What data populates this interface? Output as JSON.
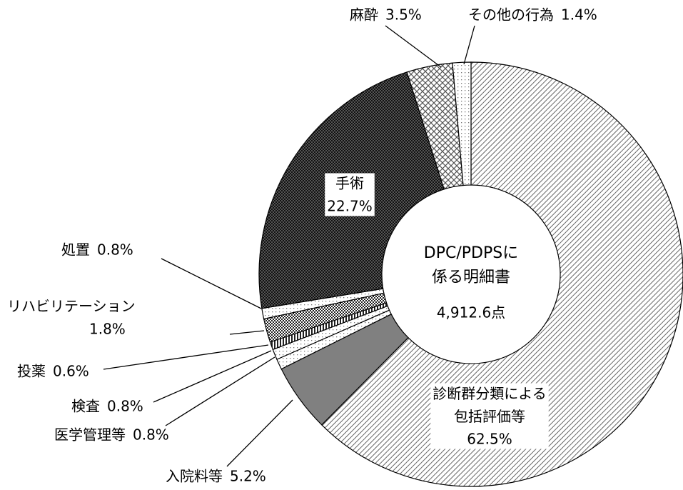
{
  "chart_data": {
    "type": "donut",
    "categories": [
      "診断群分類による包括評価等",
      "入院料等",
      "医学管理等",
      "検査",
      "投薬",
      "リハビリテーション",
      "処置",
      "手術",
      "麻酔",
      "その他の行為"
    ],
    "values": [
      62.5,
      5.2,
      0.8,
      0.8,
      0.6,
      1.8,
      0.8,
      22.7,
      3.5,
      1.4
    ],
    "value_labels": [
      "62.5%",
      "5.2%",
      "0.8%",
      "0.8%",
      "0.6%",
      "1.8%",
      "0.8%",
      "22.7%",
      "3.5%",
      "1.4%"
    ],
    "fills": [
      "diag",
      "gray",
      "dots",
      "dots",
      "vlines",
      "checker",
      "dots",
      "darkcheck",
      "cross",
      "dots"
    ],
    "center_text": [
      "DPC/PDPSに",
      "係る明細書"
    ],
    "total_label": "4,912.6点"
  }
}
